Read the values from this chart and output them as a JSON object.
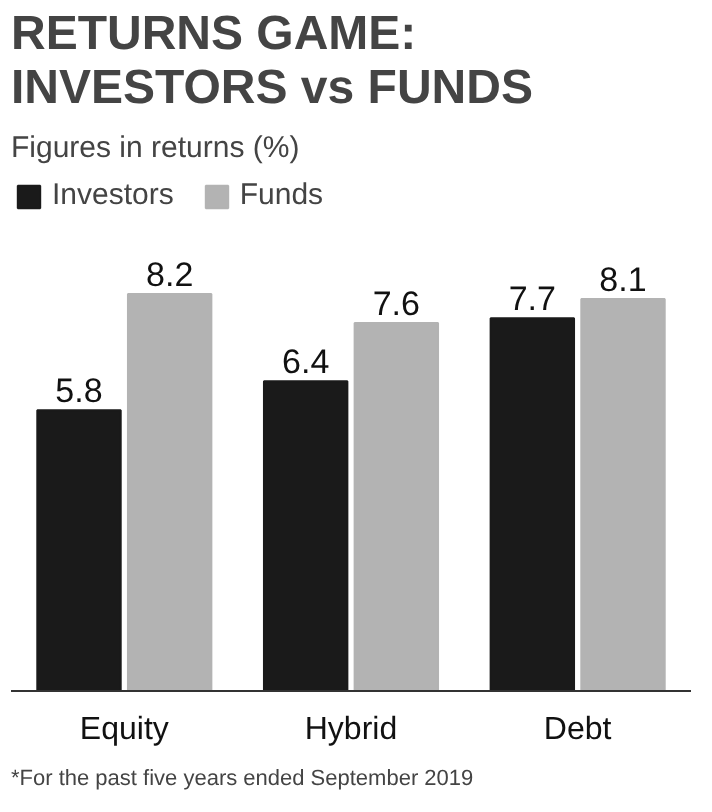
{
  "chart_data": {
    "type": "bar",
    "title": "RETURNS GAME:\nINVESTORS vs FUNDS",
    "subtitle": "Figures in returns (%)",
    "categories": [
      "Equity",
      "Hybrid",
      "Debt"
    ],
    "series": [
      {
        "name": "Investors",
        "color": "#1a1a1a",
        "values": [
          5.8,
          6.4,
          7.7
        ]
      },
      {
        "name": "Funds",
        "color": "#b3b3b3",
        "values": [
          8.2,
          7.6,
          8.1
        ]
      }
    ],
    "data_labels": true,
    "legend": "top left",
    "grid": false,
    "annotations": [
      "*For the past five years ended September 2019"
    ]
  }
}
